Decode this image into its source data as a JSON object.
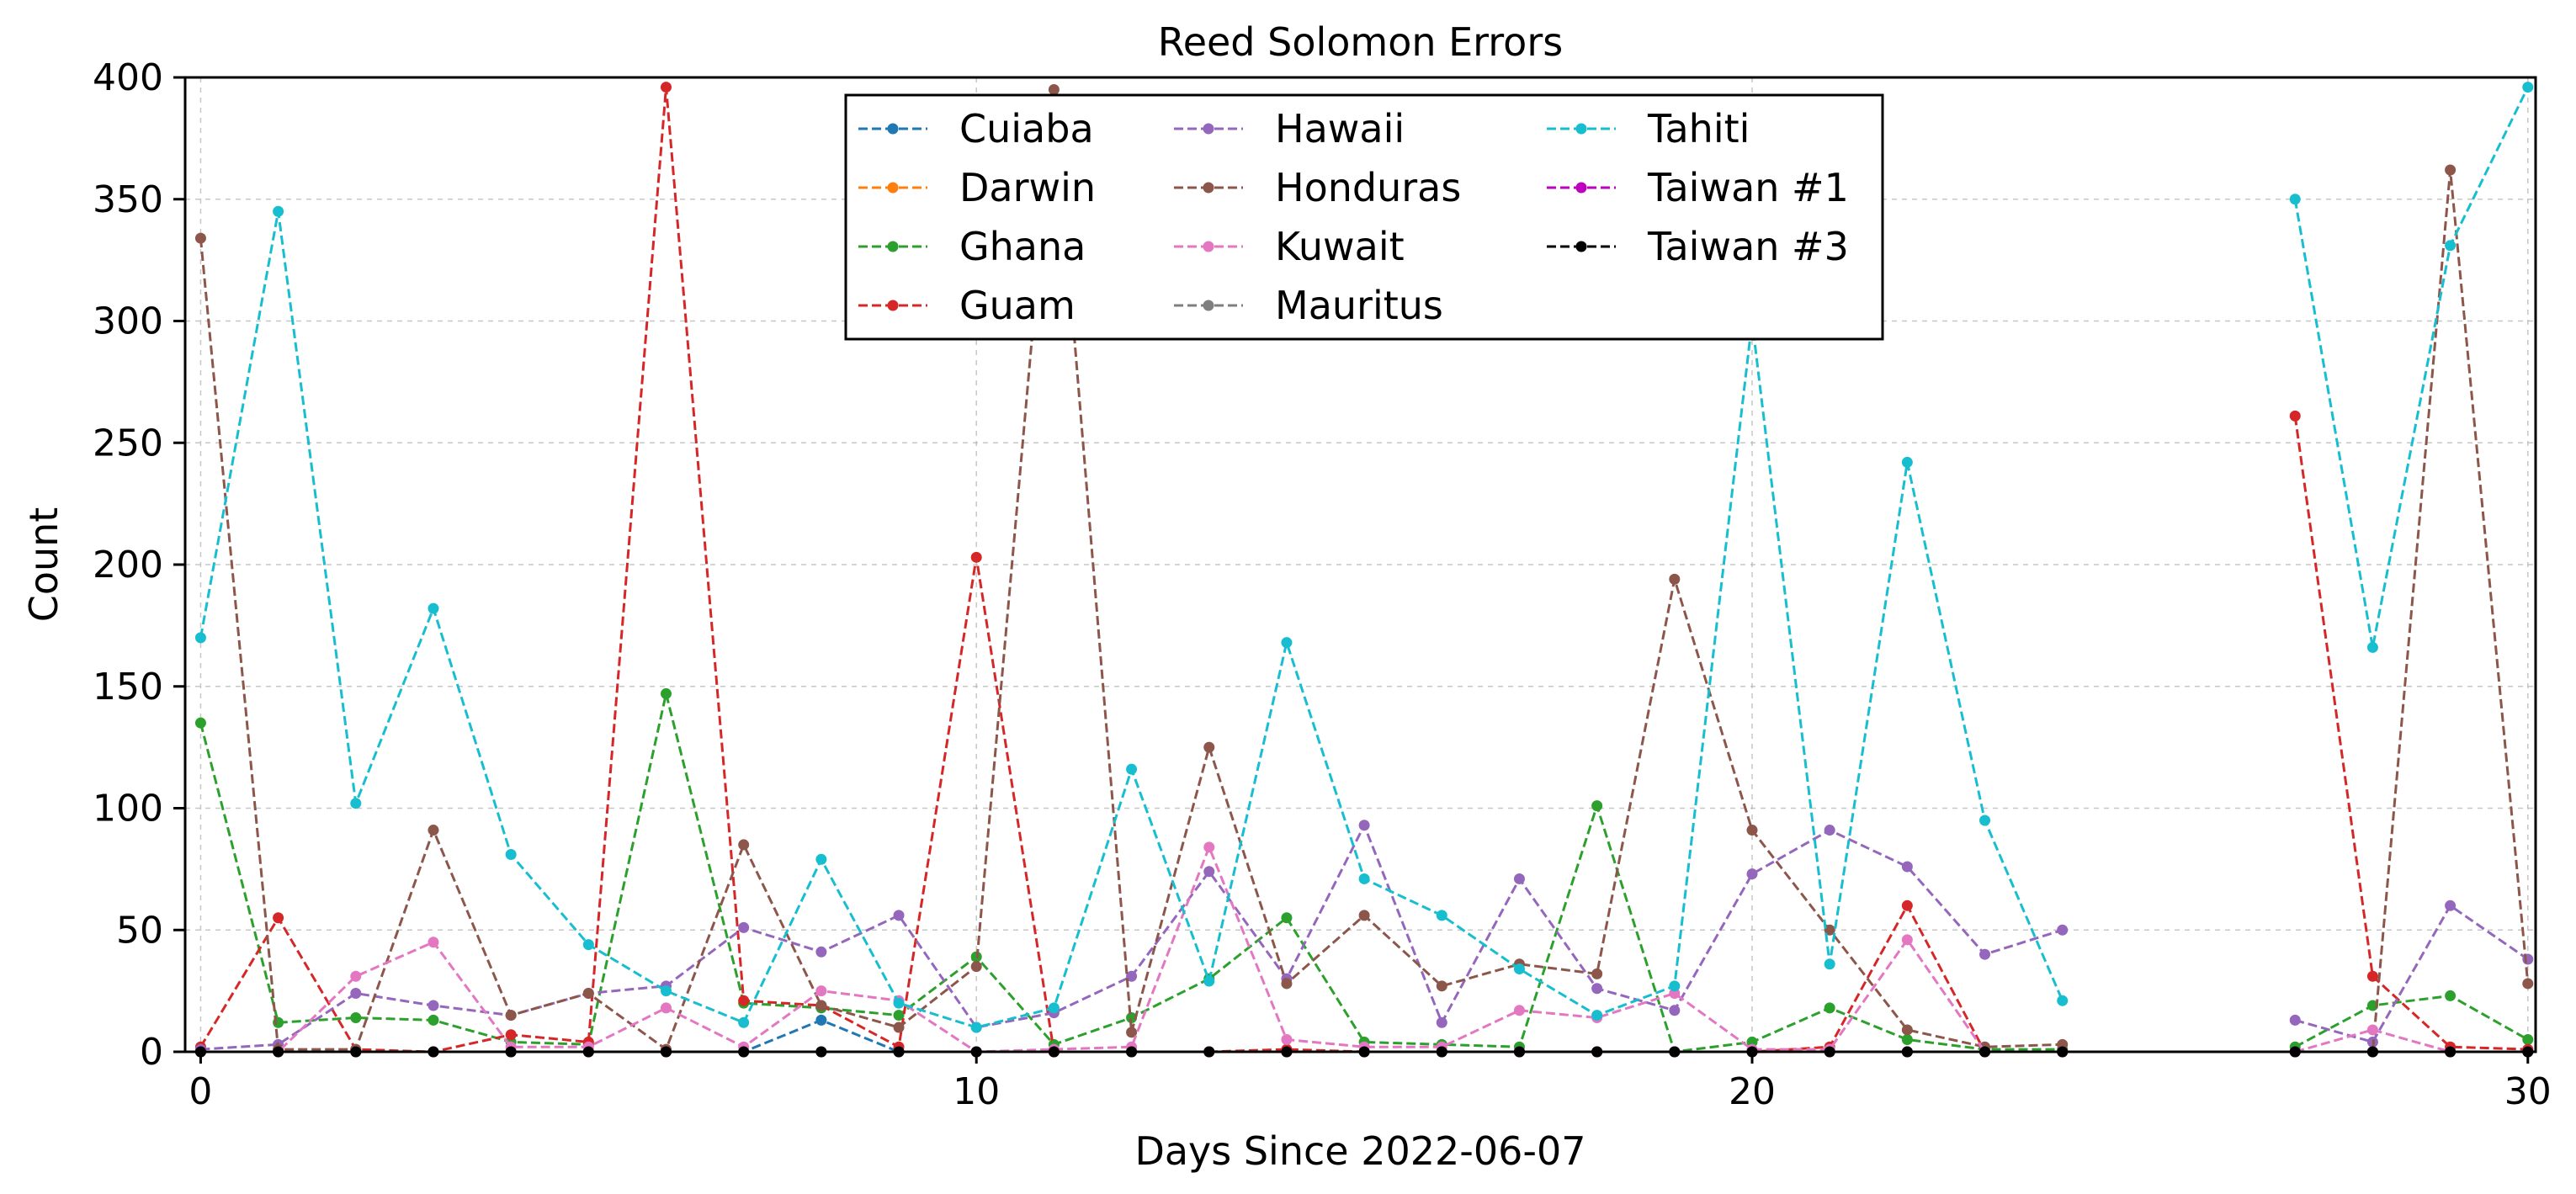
{
  "chart_data": {
    "type": "line",
    "title": "Reed Solomon Errors",
    "xlabel": "Days Since 2022-06-07",
    "ylabel": "Count",
    "xlim": [
      -0.2,
      30.1
    ],
    "ylim": [
      0,
      400
    ],
    "xticks": [
      0,
      10,
      20,
      30
    ],
    "yticks": [
      0,
      50,
      100,
      150,
      200,
      250,
      300,
      350,
      400
    ],
    "grid": true,
    "legend_position": "upper-center",
    "legend_columns": 3,
    "x": [
      0,
      1,
      2,
      3,
      4,
      5,
      6,
      7,
      8,
      9,
      10,
      11,
      12,
      13,
      14,
      15,
      16,
      17,
      18,
      19,
      20,
      21,
      22,
      23,
      24,
      25,
      26,
      27,
      28,
      29,
      30
    ],
    "series": [
      {
        "name": "Cuiaba",
        "color": "#1f77b4",
        "values": [
          0,
          0,
          0,
          0,
          0,
          0,
          0,
          0,
          13,
          0,
          0,
          0,
          0,
          0,
          0,
          0,
          0,
          0,
          0,
          0,
          0,
          0,
          0,
          0,
          0,
          null,
          null,
          0,
          0,
          0,
          0
        ]
      },
      {
        "name": "Darwin",
        "color": "#ff7f0e",
        "values": [
          0,
          0,
          0,
          0,
          0,
          0,
          0,
          0,
          0,
          0,
          0,
          0,
          0,
          0,
          0,
          0,
          0,
          0,
          0,
          0,
          0,
          0,
          0,
          0,
          0,
          null,
          null,
          0,
          0,
          0,
          0
        ]
      },
      {
        "name": "Ghana",
        "color": "#2ca02c",
        "values": [
          135,
          12,
          14,
          13,
          4,
          3,
          147,
          20,
          18,
          15,
          39,
          3,
          14,
          30,
          55,
          4,
          3,
          2,
          101,
          0,
          4,
          18,
          5,
          1,
          1,
          null,
          null,
          2,
          19,
          23,
          5
        ]
      },
      {
        "name": "Guam",
        "color": "#d62728",
        "values": [
          2,
          55,
          1,
          0,
          7,
          4,
          396,
          21,
          19,
          2,
          203,
          0,
          0,
          0,
          1,
          0,
          0,
          0,
          0,
          0,
          0,
          2,
          60,
          0,
          0,
          null,
          null,
          261,
          31,
          2,
          1
        ]
      },
      {
        "name": "Hawaii",
        "color": "#9467bd",
        "values": [
          1,
          3,
          24,
          19,
          15,
          24,
          27,
          51,
          41,
          56,
          10,
          16,
          31,
          74,
          30,
          93,
          12,
          71,
          26,
          17,
          73,
          91,
          76,
          40,
          50,
          null,
          null,
          13,
          4,
          60,
          38
        ]
      },
      {
        "name": "Honduras",
        "color": "#8c564b",
        "values": [
          334,
          1,
          1,
          91,
          15,
          24,
          1,
          85,
          19,
          10,
          35,
          395,
          8,
          125,
          28,
          56,
          27,
          36,
          32,
          194,
          91,
          50,
          9,
          2,
          3,
          null,
          null,
          0,
          0,
          362,
          28
        ]
      },
      {
        "name": "Kuwait",
        "color": "#e377c2",
        "values": [
          0,
          0,
          31,
          45,
          2,
          2,
          18,
          2,
          25,
          21,
          0,
          1,
          2,
          84,
          5,
          2,
          2,
          17,
          14,
          24,
          1,
          1,
          46,
          0,
          0,
          null,
          null,
          0,
          9,
          0,
          0
        ]
      },
      {
        "name": "Mauritus",
        "color": "#7f7f7f",
        "values": [
          0,
          0,
          0,
          0,
          0,
          0,
          0,
          0,
          0,
          0,
          0,
          0,
          0,
          0,
          0,
          0,
          0,
          0,
          0,
          0,
          0,
          0,
          0,
          0,
          0,
          null,
          null,
          0,
          0,
          0,
          0
        ]
      },
      {
        "name": "Tahiti",
        "color": "#17becf",
        "values": [
          170,
          345,
          102,
          182,
          81,
          44,
          25,
          12,
          79,
          20,
          10,
          18,
          116,
          29,
          168,
          71,
          56,
          34,
          15,
          27,
          300,
          36,
          242,
          95,
          21,
          null,
          null,
          350,
          166,
          331,
          396
        ]
      },
      {
        "name": "Taiwan #1",
        "color": "#bf00bf",
        "values": [
          0,
          0,
          0,
          0,
          0,
          0,
          0,
          0,
          0,
          0,
          0,
          0,
          0,
          0,
          0,
          0,
          0,
          0,
          0,
          0,
          0,
          0,
          0,
          0,
          0,
          null,
          null,
          0,
          0,
          0,
          0
        ]
      },
      {
        "name": "Taiwan #3",
        "color": "#000000",
        "values": [
          0,
          0,
          0,
          0,
          0,
          0,
          0,
          0,
          0,
          0,
          0,
          0,
          0,
          0,
          0,
          0,
          0,
          0,
          0,
          0,
          0,
          0,
          0,
          0,
          0,
          null,
          null,
          0,
          0,
          0,
          0
        ]
      }
    ]
  }
}
